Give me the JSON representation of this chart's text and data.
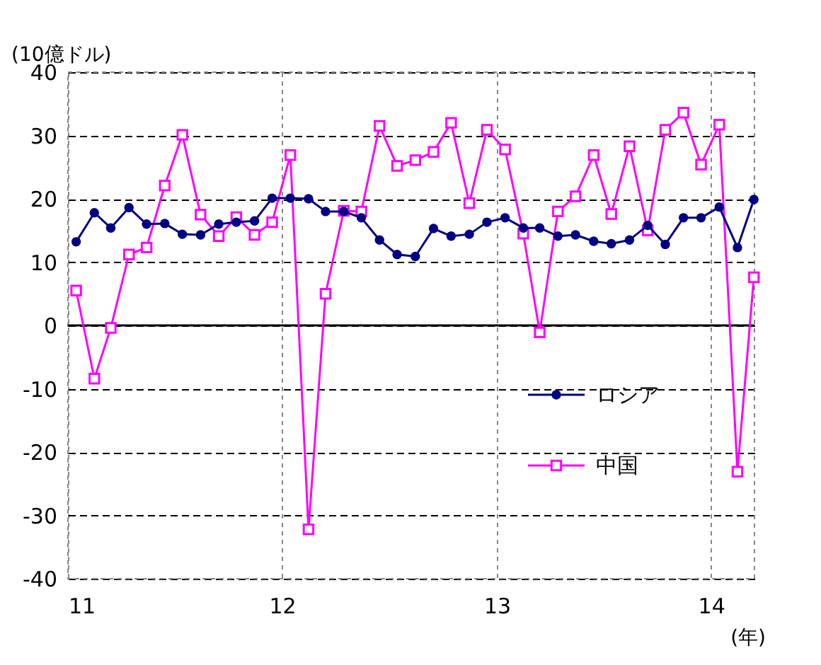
{
  "chart_data": {
    "type": "line",
    "ylabel": "(10億ドル)",
    "xlabel": "(年)",
    "x": [
      "2011-01-15",
      "2011-02-15",
      "2011-03-15",
      "2011-04-15",
      "2011-05-15",
      "2011-06-15",
      "2011-07-15",
      "2011-08-15",
      "2011-09-15",
      "2011-10-15",
      "2011-11-15",
      "2011-12-15",
      "2012-01-15",
      "2012-02-15",
      "2012-03-15",
      "2012-04-15",
      "2012-05-15",
      "2012-06-15",
      "2012-07-15",
      "2012-08-15",
      "2012-09-15",
      "2012-10-15",
      "2012-11-15",
      "2012-12-15",
      "2013-01-15",
      "2013-02-15",
      "2013-03-15",
      "2013-04-15",
      "2013-05-15",
      "2013-06-15",
      "2013-07-15",
      "2013-08-15",
      "2013-09-15",
      "2013-10-15",
      "2013-11-15",
      "2013-12-15",
      "2014-01-15",
      "2014-02-15",
      "2014-03-15"
    ],
    "series": [
      {
        "name": "ロシア",
        "color": "#000080",
        "marker": "circle",
        "values": [
          13.2,
          17.8,
          15.4,
          18.6,
          16.0,
          16.1,
          14.4,
          14.3,
          16.0,
          16.3,
          16.5,
          20.1,
          20.1,
          20.0,
          18.0,
          18.0,
          17.0,
          13.5,
          11.2,
          10.9,
          15.3,
          14.1,
          14.4,
          16.3,
          17.0,
          15.4,
          15.4,
          14.1,
          14.3,
          13.3,
          12.9,
          13.5,
          15.8,
          12.8,
          17.0,
          17.0,
          18.7,
          12.3,
          19.9
        ]
      },
      {
        "name": "中国",
        "color": "#ff00ff",
        "marker": "square",
        "values": [
          5.5,
          -8.4,
          -0.4,
          11.2,
          12.3,
          22.1,
          30.1,
          17.5,
          14.1,
          17.1,
          14.3,
          16.3,
          26.9,
          -32.2,
          5.0,
          18.1,
          18.0,
          31.5,
          25.2,
          26.1,
          27.4,
          32.0,
          19.3,
          30.9,
          27.8,
          14.5,
          -1.1,
          18.0,
          20.4,
          26.9,
          17.6,
          28.3,
          15.0,
          30.9,
          33.6,
          25.4,
          31.7,
          -23.1,
          7.6
        ]
      }
    ],
    "xlim": [
      "2011-01-01",
      "2014-03-16"
    ],
    "xticks": [
      {
        "value": "2011-01-01",
        "label": "11"
      },
      {
        "value": "2012-01-01",
        "label": "12"
      },
      {
        "value": "2013-01-01",
        "label": "13"
      },
      {
        "value": "2014-01-01",
        "label": "14"
      }
    ],
    "ylim": [
      -40,
      40
    ],
    "yticks": [
      -40,
      -30,
      -20,
      -10,
      0,
      10,
      20,
      30,
      40
    ],
    "ref_lines": [
      {
        "axis": "y",
        "value": 0,
        "color": "#000000",
        "line_style": "solid"
      }
    ],
    "grid": true,
    "legend": "bottom right",
    "line_style": "solid"
  }
}
